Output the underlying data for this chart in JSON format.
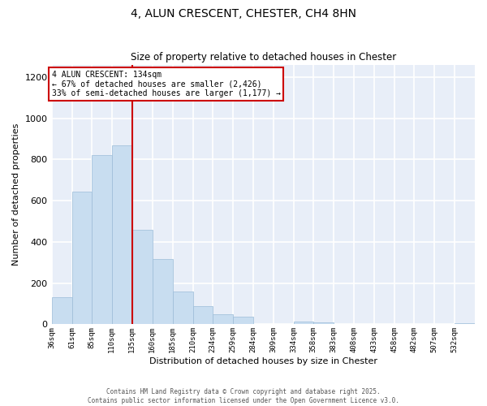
{
  "title": "4, ALUN CRESCENT, CHESTER, CH4 8HN",
  "subtitle": "Size of property relative to detached houses in Chester",
  "xlabel": "Distribution of detached houses by size in Chester",
  "ylabel": "Number of detached properties",
  "bar_color": "#c8ddf0",
  "bar_edge_color": "#9bbcd8",
  "bin_labels": [
    "36sqm",
    "61sqm",
    "85sqm",
    "110sqm",
    "135sqm",
    "160sqm",
    "185sqm",
    "210sqm",
    "234sqm",
    "259sqm",
    "284sqm",
    "309sqm",
    "334sqm",
    "358sqm",
    "383sqm",
    "408sqm",
    "433sqm",
    "458sqm",
    "482sqm",
    "507sqm",
    "532sqm"
  ],
  "bin_left_edges": [
    36,
    61,
    85,
    110,
    135,
    160,
    185,
    210,
    234,
    259,
    284,
    309,
    334,
    358,
    383,
    408,
    433,
    458,
    482,
    507,
    532
  ],
  "bin_widths": [
    25,
    24,
    25,
    25,
    25,
    25,
    25,
    24,
    25,
    25,
    25,
    25,
    24,
    25,
    25,
    25,
    25,
    24,
    25,
    25,
    25
  ],
  "bar_heights": [
    130,
    645,
    820,
    870,
    460,
    315,
    160,
    90,
    48,
    38,
    0,
    0,
    15,
    10,
    0,
    0,
    0,
    0,
    0,
    0,
    5
  ],
  "vline_x": 135,
  "vline_color": "#cc0000",
  "ylim": [
    0,
    1260
  ],
  "yticks": [
    0,
    200,
    400,
    600,
    800,
    1000,
    1200
  ],
  "annotation_title": "4 ALUN CRESCENT: 134sqm",
  "annotation_line1": "← 67% of detached houses are smaller (2,426)",
  "annotation_line2": "33% of semi-detached houses are larger (1,177) →",
  "footer1": "Contains HM Land Registry data © Crown copyright and database right 2025.",
  "footer2": "Contains public sector information licensed under the Open Government Licence v3.0.",
  "plot_bg_color": "#e8eef8",
  "fig_bg_color": "#ffffff",
  "grid_color": "#ffffff"
}
